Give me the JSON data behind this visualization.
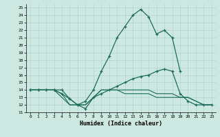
{
  "xlabel": "Humidex (Indice chaleur)",
  "background_color": "#cce8e0",
  "grid_color": "#aad0c8",
  "line_color": "#1a6b5a",
  "l1x": [
    0,
    1,
    2,
    3,
    4,
    5,
    6,
    7,
    8,
    9,
    10,
    11,
    12,
    13,
    14,
    15,
    16,
    17,
    18,
    19
  ],
  "l1y": [
    14,
    14,
    14,
    14,
    14,
    12.8,
    12,
    12.5,
    14,
    16.5,
    18.5,
    21,
    22.5,
    24,
    24.8,
    23.8,
    21.5,
    22,
    21,
    16.5
  ],
  "l2x": [
    0,
    1,
    2,
    3,
    4,
    5,
    6,
    7,
    8,
    9,
    10,
    11,
    12,
    13,
    14,
    15,
    16,
    17,
    18,
    19,
    20,
    21,
    22,
    23
  ],
  "l2y": [
    14,
    14,
    14,
    14,
    13.5,
    12.8,
    12,
    11.5,
    13,
    13.5,
    14,
    14.5,
    15,
    15.5,
    15.8,
    16,
    16.5,
    16.8,
    16.5,
    13.5,
    12.5,
    12,
    12,
    12
  ],
  "l3x": [
    0,
    1,
    2,
    3,
    4,
    5,
    6,
    7,
    8,
    9,
    10,
    11,
    12,
    13,
    14,
    15,
    16,
    17,
    18,
    19,
    20,
    21,
    22,
    23
  ],
  "l3y": [
    14,
    14,
    14,
    14,
    13.5,
    12,
    12,
    12,
    13,
    14,
    14,
    14,
    14,
    14,
    14,
    14,
    13.5,
    13.5,
    13.5,
    13,
    13,
    12.5,
    12,
    12
  ],
  "l4x": [
    0,
    1,
    2,
    3,
    4,
    5,
    6,
    7,
    8,
    9,
    10,
    11,
    12,
    13,
    14,
    15,
    16,
    17,
    18,
    19,
    20,
    21,
    22,
    23
  ],
  "l4y": [
    14,
    14,
    14,
    14,
    13,
    12,
    12,
    12,
    13,
    14,
    14,
    14,
    13.5,
    13.5,
    13.5,
    13.5,
    13,
    13,
    13,
    13,
    13,
    12.5,
    12,
    12
  ],
  "ylim": [
    11,
    25.5
  ],
  "xlim": [
    -0.5,
    23.5
  ],
  "yticks": [
    11,
    12,
    13,
    14,
    15,
    16,
    17,
    18,
    19,
    20,
    21,
    22,
    23,
    24,
    25
  ],
  "xticks": [
    0,
    1,
    2,
    3,
    4,
    5,
    6,
    7,
    8,
    9,
    10,
    11,
    12,
    13,
    14,
    15,
    16,
    17,
    18,
    19,
    20,
    21,
    22,
    23
  ]
}
